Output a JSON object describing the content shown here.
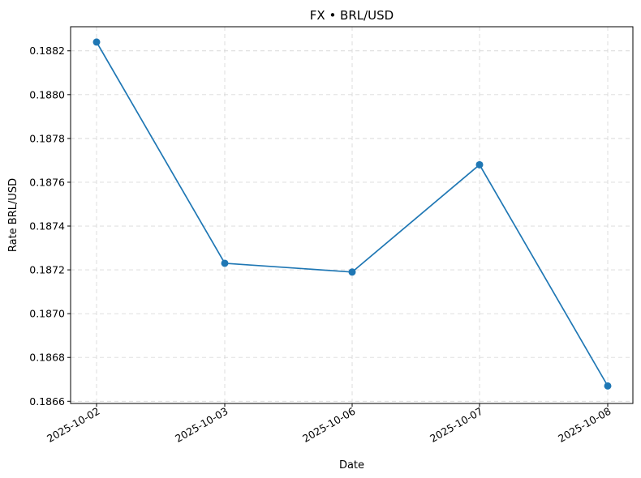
{
  "chart_data": {
    "type": "line",
    "title": "FX • BRL/USD",
    "xlabel": "Date",
    "ylabel": "Rate BRL/USD",
    "categories": [
      "2025-10-02",
      "2025-10-03",
      "2025-10-06",
      "2025-10-07",
      "2025-10-08"
    ],
    "series": [
      {
        "values": [
          0.18824,
          0.18723,
          0.18719,
          0.18768,
          0.18667
        ],
        "color": "#1f77b4",
        "marker": "circle"
      }
    ],
    "ylim": [
      0.18659,
      0.18831
    ],
    "yticks": [
      "0.1866",
      "0.1868",
      "0.1870",
      "0.1872",
      "0.1874",
      "0.1876",
      "0.1878",
      "0.1880",
      "0.1882"
    ],
    "grid": true,
    "legend": "none"
  }
}
